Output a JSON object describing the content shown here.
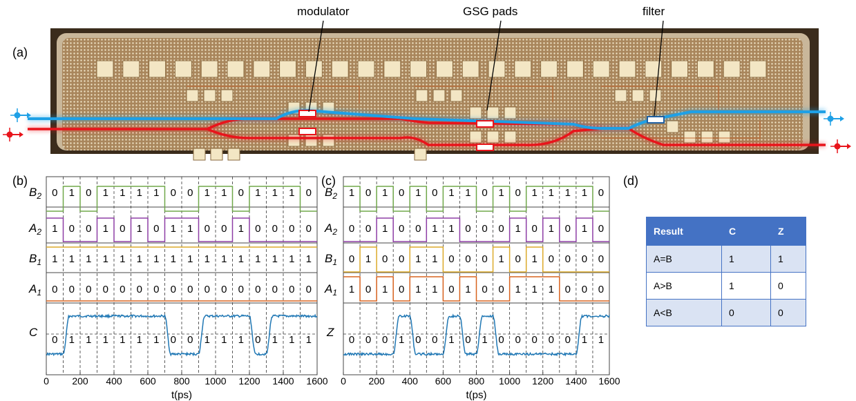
{
  "panel_labels": {
    "a": "(a)",
    "b": "(b)",
    "c": "(c)",
    "d": "(d)"
  },
  "chip_callouts": {
    "modulator": "modulator",
    "pads": "GSG pads",
    "filter": "filter"
  },
  "colors": {
    "chip_bg": "#b08c62",
    "pad": "#f3e6c4",
    "blue_wg": "#1ea0e6",
    "red_wg": "#e8141b",
    "b2": "#70a84a",
    "a2": "#8e3ea6",
    "b1": "#dcaa2a",
    "a1": "#d8621e",
    "analog": "#1f77b4",
    "table_header": "#4472c4"
  },
  "table": {
    "headers": [
      "Result",
      "C",
      "Z"
    ],
    "rows": [
      [
        "A=B",
        "1",
        "1"
      ],
      [
        "A>B",
        "1",
        "0"
      ],
      [
        "A<B",
        "0",
        "0"
      ]
    ]
  },
  "chart_data": [
    {
      "type": "line",
      "panel": "(b)",
      "xlabel": "t(ps)",
      "xlim": [
        0,
        1600
      ],
      "xticks": [
        0,
        200,
        400,
        600,
        800,
        1000,
        1200,
        1400,
        1600
      ],
      "bit_period_ps": 100,
      "channels": [
        {
          "name": "B",
          "sub": "2",
          "bits": [
            0,
            1,
            0,
            1,
            1,
            1,
            1,
            0,
            0,
            1,
            1,
            0,
            1,
            1,
            1,
            0
          ]
        },
        {
          "name": "A",
          "sub": "2",
          "bits": [
            1,
            0,
            0,
            1,
            0,
            1,
            0,
            1,
            1,
            0,
            0,
            1,
            0,
            0,
            0,
            0
          ]
        },
        {
          "name": "B",
          "sub": "1",
          "bits": [
            1,
            1,
            1,
            1,
            1,
            1,
            1,
            1,
            1,
            1,
            1,
            1,
            1,
            1,
            1,
            1
          ]
        },
        {
          "name": "A",
          "sub": "1",
          "bits": [
            0,
            0,
            0,
            0,
            0,
            0,
            0,
            0,
            0,
            0,
            0,
            0,
            0,
            0,
            0,
            0
          ]
        }
      ],
      "output": {
        "name": "C",
        "bits": [
          0,
          1,
          1,
          1,
          1,
          1,
          1,
          0,
          0,
          1,
          1,
          1,
          0,
          1,
          1,
          1
        ]
      }
    },
    {
      "type": "line",
      "panel": "(c)",
      "xlabel": "t(ps)",
      "xlim": [
        0,
        1600
      ],
      "xticks": [
        0,
        200,
        400,
        600,
        800,
        1000,
        1200,
        1400,
        1600
      ],
      "bit_period_ps": 100,
      "channels": [
        {
          "name": "B",
          "sub": "2",
          "bits": [
            1,
            0,
            1,
            0,
            1,
            0,
            1,
            1,
            0,
            1,
            0,
            1,
            1,
            1,
            1,
            0
          ]
        },
        {
          "name": "A",
          "sub": "2",
          "bits": [
            0,
            0,
            1,
            0,
            0,
            1,
            1,
            0,
            0,
            0,
            1,
            0,
            1,
            0,
            1,
            0
          ]
        },
        {
          "name": "B",
          "sub": "1",
          "bits": [
            0,
            1,
            0,
            0,
            1,
            1,
            0,
            0,
            0,
            1,
            0,
            1,
            0,
            0,
            0,
            0
          ]
        },
        {
          "name": "A",
          "sub": "1",
          "bits": [
            1,
            0,
            1,
            0,
            1,
            1,
            0,
            1,
            0,
            0,
            1,
            1,
            1,
            0,
            0,
            0
          ]
        }
      ],
      "output": {
        "name": "Z",
        "bits": [
          0,
          0,
          0,
          1,
          0,
          0,
          1,
          0,
          1,
          0,
          0,
          0,
          0,
          0,
          1,
          1
        ]
      }
    }
  ]
}
